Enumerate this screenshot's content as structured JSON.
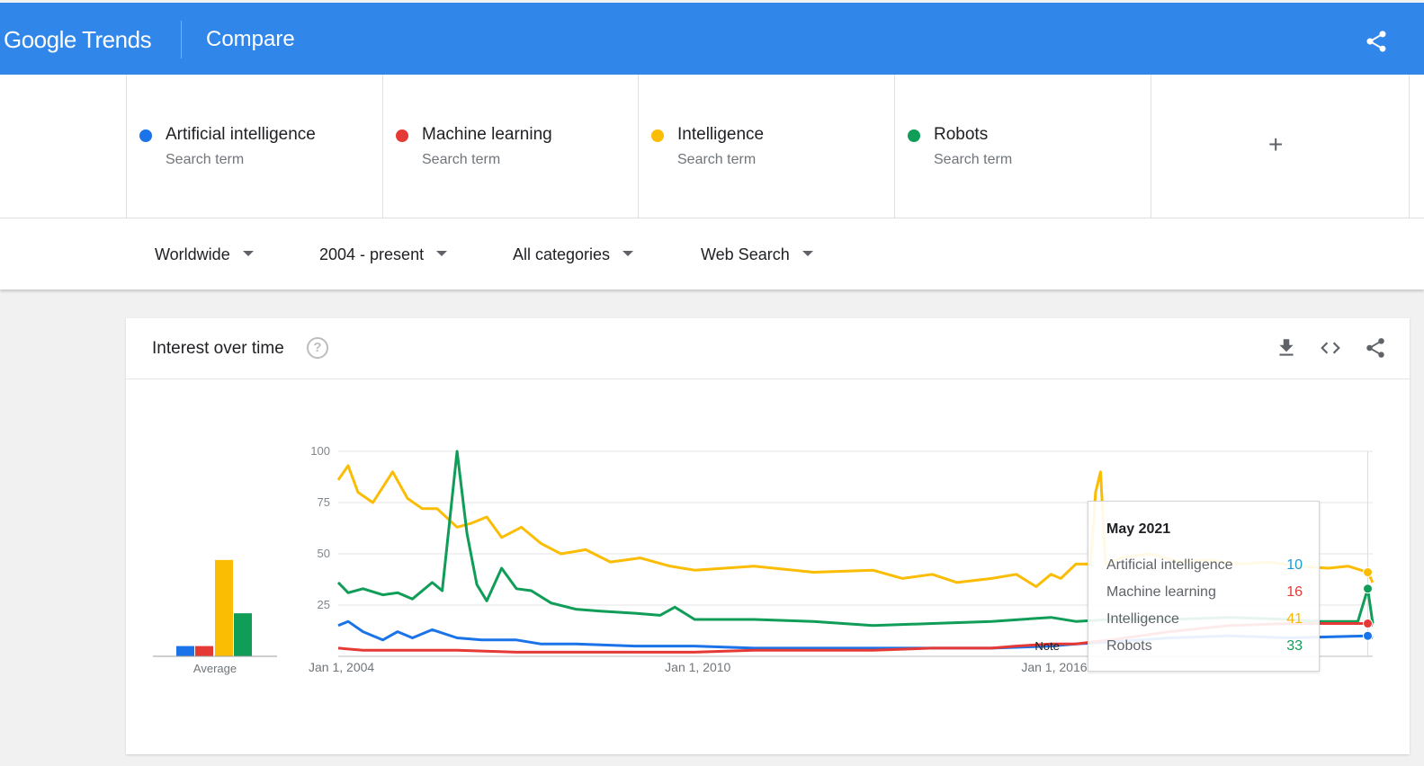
{
  "header": {
    "logo_google": "Google",
    "logo_trends": "Trends",
    "page_title": "Compare"
  },
  "terms": [
    {
      "name": "Artificial intelligence",
      "sub": "Search term",
      "color": "#1a73e8"
    },
    {
      "name": "Machine learning",
      "sub": "Search term",
      "color": "#e53935"
    },
    {
      "name": "Intelligence",
      "sub": "Search term",
      "color": "#fbbc04"
    },
    {
      "name": "Robots",
      "sub": "Search term",
      "color": "#0f9d58"
    }
  ],
  "add_term_symbol": "+",
  "filters": {
    "region": "Worldwide",
    "time": "2004 - present",
    "category": "All categories",
    "search_type": "Web Search"
  },
  "card": {
    "title": "Interest over time",
    "help_symbol": "?",
    "icons": [
      "download-icon",
      "embed-code-icon",
      "share-icon"
    ]
  },
  "chart_data": {
    "type": "line",
    "title": "",
    "xlabel": "",
    "ylabel": "",
    "ylim": [
      0,
      100
    ],
    "yticks": [
      25,
      50,
      75,
      100
    ],
    "xtick_labels": [
      "Jan 1, 2004",
      "Jan 1, 2010",
      "Jan 1, 2016"
    ],
    "x_range": [
      "2004-01",
      "2021-06"
    ],
    "grid": true,
    "note_label": "Note",
    "average_label": "Average",
    "averages": [
      {
        "name": "Artificial intelligence",
        "value": 5
      },
      {
        "name": "Machine learning",
        "value": 5
      },
      {
        "name": "Intelligence",
        "value": 47
      },
      {
        "name": "Robots",
        "value": 21
      }
    ],
    "series": [
      {
        "name": "Intelligence",
        "color": "#fbbc04",
        "points": [
          [
            "2004-01",
            86
          ],
          [
            "2004-03",
            93
          ],
          [
            "2004-05",
            80
          ],
          [
            "2004-08",
            75
          ],
          [
            "2004-12",
            90
          ],
          [
            "2005-03",
            77
          ],
          [
            "2005-06",
            72
          ],
          [
            "2005-09",
            72
          ],
          [
            "2006-01",
            63
          ],
          [
            "2006-04",
            65
          ],
          [
            "2006-07",
            68
          ],
          [
            "2006-10",
            58
          ],
          [
            "2007-02",
            63
          ],
          [
            "2007-06",
            55
          ],
          [
            "2007-10",
            50
          ],
          [
            "2008-03",
            52
          ],
          [
            "2008-08",
            46
          ],
          [
            "2009-02",
            48
          ],
          [
            "2009-08",
            44
          ],
          [
            "2010-01",
            42
          ],
          [
            "2011-01",
            44
          ],
          [
            "2012-01",
            41
          ],
          [
            "2013-01",
            42
          ],
          [
            "2013-07",
            38
          ],
          [
            "2014-01",
            40
          ],
          [
            "2014-06",
            36
          ],
          [
            "2015-01",
            38
          ],
          [
            "2015-06",
            40
          ],
          [
            "2015-10",
            34
          ],
          [
            "2016-01",
            40
          ],
          [
            "2016-03",
            38
          ],
          [
            "2016-06",
            45
          ],
          [
            "2016-09",
            45
          ],
          [
            "2016-10",
            80
          ],
          [
            "2016-11",
            90
          ],
          [
            "2016-12",
            45
          ],
          [
            "2017-03",
            48
          ],
          [
            "2017-09",
            50
          ],
          [
            "2018-03",
            46
          ],
          [
            "2018-09",
            47
          ],
          [
            "2019-03",
            45
          ],
          [
            "2019-09",
            46
          ],
          [
            "2020-03",
            44
          ],
          [
            "2020-09",
            43
          ],
          [
            "2021-01",
            44
          ],
          [
            "2021-05",
            41
          ],
          [
            "2021-06",
            36
          ]
        ]
      },
      {
        "name": "Robots",
        "color": "#0f9d58",
        "points": [
          [
            "2004-01",
            36
          ],
          [
            "2004-03",
            31
          ],
          [
            "2004-06",
            33
          ],
          [
            "2004-10",
            30
          ],
          [
            "2005-01",
            31
          ],
          [
            "2005-04",
            28
          ],
          [
            "2005-08",
            36
          ],
          [
            "2005-10",
            32
          ],
          [
            "2006-01",
            100
          ],
          [
            "2006-03",
            60
          ],
          [
            "2006-05",
            35
          ],
          [
            "2006-07",
            27
          ],
          [
            "2006-10",
            43
          ],
          [
            "2007-01",
            33
          ],
          [
            "2007-04",
            32
          ],
          [
            "2007-08",
            26
          ],
          [
            "2008-01",
            23
          ],
          [
            "2008-06",
            22
          ],
          [
            "2009-01",
            21
          ],
          [
            "2009-06",
            20
          ],
          [
            "2009-09",
            24
          ],
          [
            "2010-01",
            18
          ],
          [
            "2011-01",
            18
          ],
          [
            "2012-01",
            17
          ],
          [
            "2013-01",
            15
          ],
          [
            "2014-01",
            16
          ],
          [
            "2015-01",
            17
          ],
          [
            "2016-01",
            19
          ],
          [
            "2016-06",
            17
          ],
          [
            "2017-01",
            18
          ],
          [
            "2018-01",
            18
          ],
          [
            "2019-01",
            19
          ],
          [
            "2020-01",
            18
          ],
          [
            "2020-06",
            17
          ],
          [
            "2021-03",
            17
          ],
          [
            "2021-05",
            33
          ],
          [
            "2021-06",
            16
          ]
        ]
      },
      {
        "name": "Artificial intelligence",
        "color": "#1a73e8",
        "points": [
          [
            "2004-01",
            15
          ],
          [
            "2004-03",
            17
          ],
          [
            "2004-06",
            12
          ],
          [
            "2004-10",
            8
          ],
          [
            "2005-01",
            12
          ],
          [
            "2005-04",
            9
          ],
          [
            "2005-08",
            13
          ],
          [
            "2006-01",
            9
          ],
          [
            "2006-06",
            8
          ],
          [
            "2007-01",
            8
          ],
          [
            "2007-06",
            6
          ],
          [
            "2008-01",
            6
          ],
          [
            "2009-01",
            5
          ],
          [
            "2010-01",
            5
          ],
          [
            "2011-01",
            4
          ],
          [
            "2012-01",
            4
          ],
          [
            "2013-01",
            4
          ],
          [
            "2014-01",
            4
          ],
          [
            "2015-01",
            4
          ],
          [
            "2016-01",
            5
          ],
          [
            "2016-06",
            6
          ],
          [
            "2017-01",
            7
          ],
          [
            "2018-01",
            9
          ],
          [
            "2019-01",
            10
          ],
          [
            "2020-01",
            9
          ],
          [
            "2021-05",
            10
          ],
          [
            "2021-06",
            9
          ]
        ]
      },
      {
        "name": "Machine learning",
        "color": "#e53935",
        "points": [
          [
            "2004-01",
            4
          ],
          [
            "2004-06",
            3
          ],
          [
            "2005-01",
            3
          ],
          [
            "2006-01",
            3
          ],
          [
            "2007-01",
            2
          ],
          [
            "2008-01",
            2
          ],
          [
            "2009-01",
            2
          ],
          [
            "2010-01",
            2
          ],
          [
            "2011-01",
            3
          ],
          [
            "2012-01",
            3
          ],
          [
            "2013-01",
            3
          ],
          [
            "2014-01",
            4
          ],
          [
            "2015-01",
            4
          ],
          [
            "2015-06",
            5
          ],
          [
            "2016-01",
            6
          ],
          [
            "2016-06",
            6
          ],
          [
            "2017-01",
            8
          ],
          [
            "2018-01",
            12
          ],
          [
            "2019-01",
            15
          ],
          [
            "2020-01",
            16
          ],
          [
            "2021-05",
            16
          ],
          [
            "2021-06",
            15
          ]
        ]
      }
    ],
    "tooltip": {
      "date": "May 2021",
      "rows": [
        {
          "name": "Artificial intelligence",
          "value": "10",
          "color": "#1a9bd7"
        },
        {
          "name": "Machine learning",
          "value": "16",
          "color": "#e53935"
        },
        {
          "name": "Intelligence",
          "value": "41",
          "color": "#f9b800"
        },
        {
          "name": "Robots",
          "value": "33",
          "color": "#0f9d58"
        }
      ]
    }
  }
}
